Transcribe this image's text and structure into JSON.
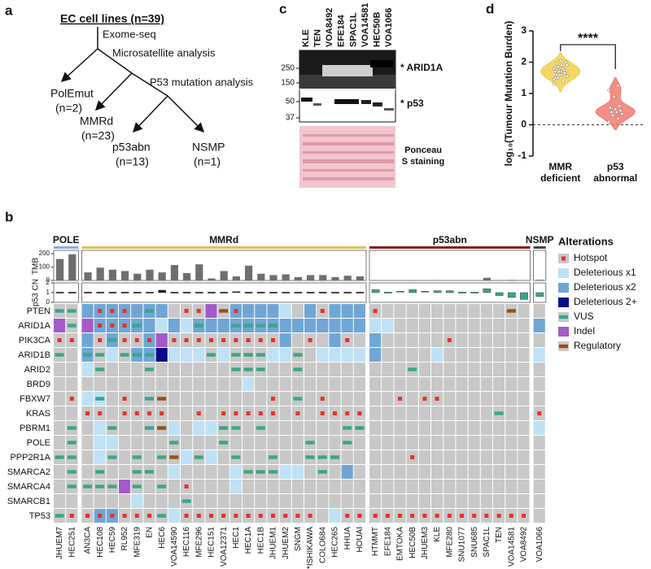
{
  "panel_a": {
    "label": "a",
    "root": "EC cell lines (n=39)",
    "edges": [
      "Exome-seq",
      "Microsatellite analysis",
      "P53 mutation analysis"
    ],
    "nodes": [
      [
        "PolEmut",
        "(n=2)"
      ],
      [
        "MMRd",
        "(n=23)"
      ],
      [
        "p53abn",
        "(n=13)"
      ],
      [
        "NSMP",
        "(n=1)"
      ]
    ]
  },
  "panel_c": {
    "label": "c",
    "lanes": [
      "KLE",
      "TEN",
      "VOA8492",
      "EFE184",
      "SPAC1L",
      "VOA14581",
      "HEC50B",
      "VOA1066"
    ],
    "markers": [
      250,
      150,
      50,
      37
    ],
    "bands": [
      "* ARID1A",
      "* p53"
    ],
    "stain": [
      "Ponceau",
      "S staining"
    ]
  },
  "chart_data": {
    "type": "violin",
    "label": "d",
    "ylabel": "log₁₀(Tumour Mutation Burden)",
    "categories": [
      [
        "MMR",
        "deficient"
      ],
      [
        "p53",
        "abnormal"
      ]
    ],
    "colors": [
      "#f2cf4a",
      "#f07a6e"
    ],
    "values": [
      [
        1.3,
        1.4,
        1.5,
        1.55,
        1.6,
        1.6,
        1.65,
        1.7,
        1.7,
        1.75,
        1.75,
        1.8,
        1.8,
        1.85,
        1.9,
        1.9,
        1.95,
        2.0,
        2.05,
        1.5,
        1.65,
        1.7,
        1.45
      ],
      [
        0.1,
        0.2,
        0.3,
        0.35,
        0.4,
        0.4,
        0.45,
        0.5,
        0.55,
        0.6,
        0.9,
        1.1,
        1.25
      ]
    ],
    "significance": "****",
    "ylim": [
      -1,
      3
    ],
    "yticks": [
      -1,
      0,
      1,
      2,
      3
    ],
    "reference_line": 0
  },
  "panel_b": {
    "label": "b",
    "tmb_label": "TMB",
    "cn_label": "p53 CN",
    "tmb_lim": [
      0,
      200
    ],
    "tmb_ticks": [
      0,
      100,
      200
    ],
    "cn_lim": [
      0,
      2
    ],
    "cn_ticks": [
      0,
      1,
      2
    ],
    "groups": [
      {
        "name": "POLE",
        "color": "#8eaadc",
        "cn_color": "#222222",
        "cell_lines": [
          "JHUEM7",
          "HEC251"
        ],
        "tmb": [
          160,
          195
        ],
        "p53_cn": [
          1,
          1
        ]
      },
      {
        "name": "MMRd",
        "color": "#d9c35c",
        "cn_color": "#222222",
        "cell_lines": [
          "AN3CA",
          "HEC108",
          "HEC59",
          "RL952",
          "MFE319",
          "EN",
          "HEC6",
          "VOA14590",
          "HEC116",
          "MFE296",
          "HEC151",
          "VOA12371",
          "HEC1",
          "HEC1A",
          "HEC1B",
          "JHUEM1",
          "JHUEM2",
          "SNGM",
          "*ISHIKAWA",
          "COLO684",
          "HEC265",
          "HHUA",
          "HOUAI"
        ],
        "tmb": [
          60,
          95,
          80,
          70,
          50,
          80,
          60,
          115,
          55,
          120,
          15,
          70,
          30,
          110,
          50,
          40,
          45,
          25,
          40,
          40,
          25,
          35,
          30
        ],
        "p53_cn": [
          1,
          1,
          1,
          1,
          1,
          1,
          1.25,
          1,
          1,
          1,
          1,
          1,
          1.05,
          1,
          1,
          1,
          1,
          1,
          1,
          1,
          1,
          1,
          1
        ]
      },
      {
        "name": "p53abn",
        "color": "#8b1c1c",
        "cn_color": "#3aa58a",
        "cell_lines": [
          "HTMMT",
          "EFE184",
          "EMTOKA",
          "HEC50B",
          "JHUEM3",
          "KLE",
          "MFE280",
          "SNU1077",
          "SNU685",
          "SPAC1L",
          "TEN",
          "VOA14581",
          "VOA8492"
        ],
        "tmb": [
          2,
          2,
          2,
          2,
          2,
          3,
          2,
          2,
          2,
          20,
          3,
          4,
          3
        ],
        "p53_cn": [
          1.3,
          0.9,
          1.1,
          1.3,
          1.1,
          1.2,
          1.2,
          0.9,
          0.9,
          1.4,
          0.7,
          0.5,
          0.3
        ]
      },
      {
        "name": "NSMP",
        "color": "#444444",
        "cn_color": "#3aa58a",
        "cell_lines": [
          "VOA1066"
        ],
        "tmb": [
          5
        ],
        "p53_cn": [
          0.6
        ]
      }
    ],
    "genes": [
      {
        "name": "PTEN",
        "alterations": [
          "VUS",
          "VUS",
          "Deleterious x2",
          [
            "Deleterious x2",
            "Hotspot"
          ],
          [
            "Deleterious x2",
            "Hotspot"
          ],
          [
            "Deleterious x2",
            "Hotspot"
          ],
          "Deleterious x2",
          [
            "Deleterious x2",
            "VUS"
          ],
          "Deleterious x2",
          null,
          "Hotspot",
          "Hotspot",
          "Indel",
          "Regulatory",
          [
            "Deleterious x2",
            "Hotspot"
          ],
          "Deleterious x2",
          "Deleterious x2",
          "Deleterious x2",
          "Deleterious x1",
          null,
          "Deleterious x2",
          "Hotspot",
          "Deleterious x2",
          "Deleterious x2",
          "Deleterious x2",
          "Hotspot",
          null,
          null,
          null,
          null,
          null,
          null,
          null,
          null,
          null,
          null,
          "Regulatory",
          null,
          null
        ]
      },
      {
        "name": "ARID1A",
        "alterations": [
          "Indel",
          "VUS",
          "Indel",
          [
            "Deleterious x2",
            "Hotspot"
          ],
          [
            "Deleterious x2",
            "Hotspot"
          ],
          [
            "Deleterious x2",
            "Hotspot"
          ],
          [
            "Deleterious x2",
            "VUS"
          ],
          "Deleterious x2",
          "Deleterious x1",
          "Deleterious x2",
          "Deleterious x1",
          [
            "Deleterious x2",
            "VUS"
          ],
          "Deleterious x2",
          "Deleterious x2",
          [
            "Deleterious x2",
            "VUS"
          ],
          [
            "Deleterious x2",
            "VUS"
          ],
          [
            "Deleterious x2",
            "VUS"
          ],
          [
            "Deleterious x2",
            "VUS"
          ],
          "Deleterious x2",
          "Deleterious x2",
          "Deleterious x2",
          "Deleterious x2",
          "Deleterious x2",
          "Deleterious x2",
          "Deleterious x2",
          "Deleterious x1",
          "Deleterious x1",
          null,
          null,
          null,
          null,
          null,
          null,
          null,
          null,
          null,
          null,
          null,
          "Deleterious x2"
        ]
      },
      {
        "name": "PIK3CA",
        "alterations": [
          "Hotspot",
          "Hotspot",
          "Deleterious x2",
          "Hotspot",
          [
            "Deleterious x2",
            "VUS"
          ],
          "Hotspot",
          "Hotspot",
          [
            "Deleterious x2",
            "Hotspot"
          ],
          "Indel",
          "Hotspot",
          "Hotspot",
          "Hotspot",
          "Hotspot",
          "Hotspot",
          "Hotspot",
          "Hotspot",
          "Hotspot",
          "Hotspot",
          "Deleterious x2",
          null,
          "Hotspot",
          null,
          "Deleterious x2",
          "Hotspot",
          null,
          "Deleterious x2",
          null,
          null,
          null,
          null,
          null,
          "Hotspot",
          null,
          null,
          null,
          null,
          null,
          null,
          null
        ]
      },
      {
        "name": "ARID1B",
        "alterations": [
          "VUS",
          null,
          [
            "Deleterious x2",
            "VUS"
          ],
          "VUS",
          "Deleterious x1",
          "VUS",
          [
            "Deleterious x2",
            "VUS"
          ],
          [
            "Deleterious x2",
            "VUS"
          ],
          "Deleterious 2+",
          "Deleterious x1",
          "Deleterious x1",
          "Deleterious x1",
          "VUS",
          "Deleterious x1",
          "VUS",
          "VUS",
          "VUS",
          "Deleterious x1",
          "Deleterious x1",
          "VUS",
          null,
          "Deleterious x1",
          "Deleterious x1",
          "Deleterious x1",
          "Deleterious x1",
          "Deleterious x2",
          null,
          null,
          null,
          null,
          "Deleterious x1",
          null,
          null,
          null,
          null,
          null,
          null,
          null,
          "Deleterious x1"
        ]
      },
      {
        "name": "ARID2",
        "alterations": [
          null,
          null,
          "Deleterious x1",
          "VUS",
          null,
          null,
          null,
          "VUS",
          null,
          null,
          null,
          null,
          null,
          null,
          "VUS",
          "VUS",
          "VUS",
          null,
          null,
          "VUS",
          null,
          null,
          null,
          null,
          null,
          null,
          null,
          null,
          "VUS",
          null,
          null,
          null,
          null,
          null,
          null,
          null,
          null,
          null,
          null
        ]
      },
      {
        "name": "BRD9",
        "alterations": [
          null,
          null,
          null,
          null,
          null,
          null,
          null,
          null,
          null,
          null,
          null,
          null,
          null,
          null,
          null,
          "Deleterious x1",
          null,
          null,
          null,
          null,
          null,
          null,
          null,
          null,
          null,
          null,
          null,
          null,
          null,
          null,
          null,
          null,
          null,
          null,
          null,
          null,
          null,
          null,
          null
        ]
      },
      {
        "name": "FBXW7",
        "alterations": [
          null,
          "Hotspot",
          "Deleterious x1",
          [
            "Deleterious x1",
            "VUS"
          ],
          null,
          "Hotspot",
          null,
          "VUS",
          "Regulatory",
          null,
          null,
          null,
          null,
          null,
          null,
          null,
          null,
          "Hotspot",
          null,
          "VUS",
          null,
          "Hotspot",
          null,
          null,
          null,
          null,
          null,
          "Hotspot",
          null,
          "Hotspot",
          "Hotspot",
          null,
          null,
          null,
          null,
          null,
          null,
          null,
          null
        ]
      },
      {
        "name": "KRAS",
        "alterations": [
          null,
          null,
          "Hotspot",
          "Hotspot",
          null,
          "Hotspot",
          "Hotspot",
          "Hotspot",
          "Hotspot",
          null,
          null,
          "Hotspot",
          null,
          "Hotspot",
          "Hotspot",
          "Hotspot",
          "Hotspot",
          "Hotspot",
          null,
          "Hotspot",
          null,
          "Hotspot",
          "Hotspot",
          "Hotspot",
          "Hotspot",
          null,
          null,
          null,
          null,
          null,
          null,
          null,
          null,
          null,
          null,
          "VUS",
          null,
          null,
          "Hotspot"
        ]
      },
      {
        "name": "PBRM1",
        "alterations": [
          null,
          "VUS",
          null,
          "Deleterious x1",
          "VUS",
          null,
          null,
          "VUS",
          "Regulatory",
          "Deleterious x1",
          null,
          "Deleterious x1",
          "Deleterious x1",
          "VUS",
          "VUS",
          null,
          "VUS",
          null,
          null,
          null,
          null,
          null,
          null,
          "VUS",
          "VUS",
          null,
          null,
          null,
          null,
          null,
          null,
          null,
          null,
          null,
          null,
          null,
          null,
          null,
          "Deleterious x1"
        ]
      },
      {
        "name": "POLE",
        "alterations": [
          null,
          "VUS",
          null,
          "Deleterious x1",
          "Deleterious x1",
          null,
          null,
          null,
          null,
          "VUS",
          null,
          null,
          null,
          "VUS",
          null,
          null,
          null,
          null,
          null,
          null,
          "VUS",
          null,
          null,
          "VUS",
          null,
          null,
          null,
          null,
          null,
          null,
          null,
          null,
          null,
          null,
          null,
          null,
          null,
          null,
          null
        ]
      },
      {
        "name": "PPP2R1A",
        "alterations": [
          "VUS",
          "VUS",
          null,
          "Deleterious x1",
          "VUS",
          null,
          "VUS",
          null,
          "VUS",
          "Regulatory",
          "Deleterious x1",
          "VUS",
          "Deleterious x1",
          null,
          "VUS",
          null,
          null,
          "VUS",
          null,
          null,
          "VUS",
          "VUS",
          "VUS",
          null,
          null,
          null,
          null,
          null,
          "Hotspot",
          null,
          null,
          null,
          null,
          null,
          null,
          null,
          null,
          null,
          null
        ]
      },
      {
        "name": "SMARCA2",
        "alterations": [
          null,
          "VUS",
          null,
          "VUS",
          null,
          null,
          "VUS",
          "VUS",
          null,
          "Deleterious x1",
          null,
          null,
          null,
          null,
          "Deleterious x1",
          "VUS",
          "VUS",
          "VUS",
          "Deleterious x1",
          "Deleterious x1",
          null,
          "VUS",
          null,
          "Deleterious x2",
          null,
          null,
          null,
          null,
          null,
          null,
          null,
          null,
          null,
          null,
          null,
          null,
          null,
          null,
          null
        ]
      },
      {
        "name": "SMARCA4",
        "alterations": [
          null,
          "VUS",
          "VUS",
          "VUS",
          "VUS",
          "Indel",
          "VUS",
          null,
          "VUS",
          null,
          "Hotspot",
          null,
          null,
          null,
          "Deleterious x1",
          null,
          null,
          null,
          null,
          null,
          null,
          null,
          null,
          null,
          null,
          null,
          null,
          null,
          null,
          null,
          null,
          null,
          null,
          null,
          null,
          null,
          null,
          null,
          null
        ]
      },
      {
        "name": "SMARCB1",
        "alterations": [
          null,
          null,
          null,
          null,
          null,
          null,
          "Deleterious x1",
          null,
          null,
          null,
          "VUS",
          null,
          null,
          null,
          null,
          null,
          null,
          null,
          null,
          null,
          null,
          null,
          null,
          null,
          null,
          null,
          null,
          null,
          null,
          null,
          null,
          null,
          null,
          null,
          null,
          null,
          null,
          null,
          null
        ]
      },
      {
        "name": "TP53",
        "alterations": [
          "VUS",
          "Hotspot",
          "Hotspot",
          [
            "Deleterious x2",
            "Hotspot"
          ],
          [
            "Deleterious x2",
            "Hotspot"
          ],
          "Hotspot",
          "Hotspot",
          "Hotspot",
          "VUS",
          "Deleterious x1",
          "Hotspot",
          "Hotspot",
          "Hotspot",
          "Hotspot",
          "Hotspot",
          "Hotspot",
          "Hotspot",
          "Hotspot",
          "Hotspot",
          "Hotspot",
          "Hotspot",
          null,
          "Deleterious x1",
          "Hotspot",
          "Hotspot",
          "Hotspot",
          "Hotspot",
          "Hotspot",
          "Hotspot",
          "Hotspot",
          "Hotspot",
          "Hotspot",
          "Hotspot",
          "Hotspot",
          "Hotspot",
          "Hotspot",
          "Hotspot",
          "Hotspot",
          null
        ]
      }
    ],
    "legend": {
      "title": "Alterations",
      "items": [
        {
          "name": "Hotspot",
          "color": "#e8302a",
          "shape": "dot"
        },
        {
          "name": "Deleterious x1",
          "color": "#bfe1f6",
          "shape": "fill"
        },
        {
          "name": "Deleterious x2",
          "color": "#6fa6d6",
          "shape": "fill"
        },
        {
          "name": "Deleterious 2+",
          "color": "#0b0b8a",
          "shape": "fill"
        },
        {
          "name": "VUS",
          "color": "#3aa58a",
          "shape": "bar"
        },
        {
          "name": "Indel",
          "color": "#a45ac8",
          "shape": "fill"
        },
        {
          "name": "Regulatory",
          "color": "#9a4f12",
          "shape": "bar"
        }
      ]
    }
  }
}
